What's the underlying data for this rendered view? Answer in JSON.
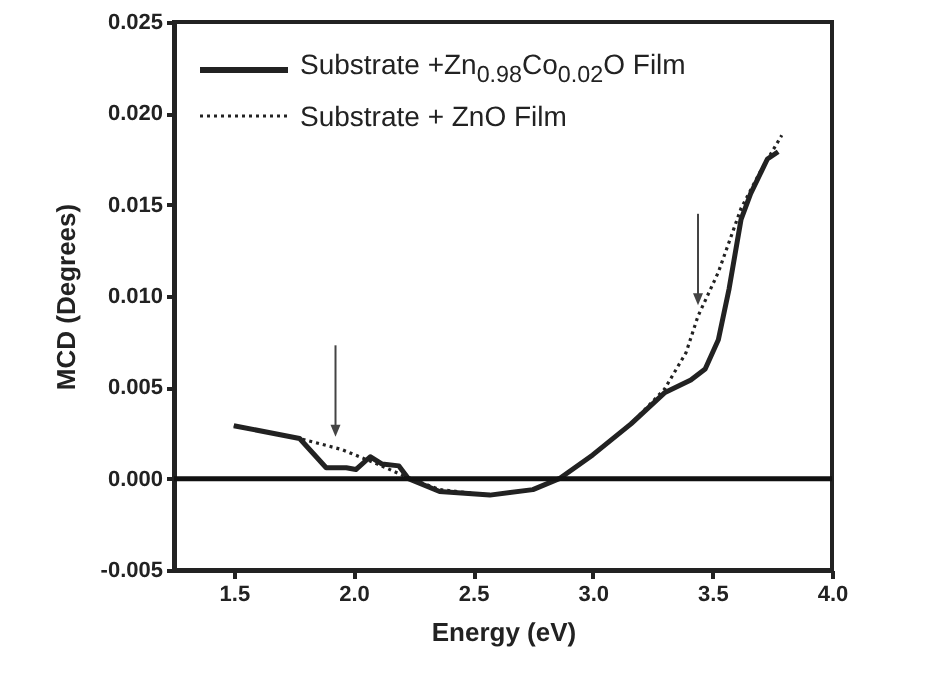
{
  "chart_data": {
    "type": "line",
    "xlabel": "Energy (eV)",
    "ylabel": "MCD (Degrees)",
    "xlim": [
      1.25,
      4.0
    ],
    "ylim": [
      -0.005,
      0.025
    ],
    "xticks": [
      1.5,
      {
        "value": 2,
        "label": "2.0"
      },
      2.5,
      {
        "value": 3,
        "label": "3.0"
      },
      3.5,
      {
        "value": 4,
        "label": "4.0"
      }
    ],
    "yticks": [
      -0.005,
      {
        "value": 0,
        "label": "0.000"
      },
      {
        "value": 0.005,
        "label": "0.005"
      },
      {
        "value": 0.01,
        "label": "0.010"
      },
      {
        "value": 0.015,
        "label": "0.015"
      },
      {
        "value": 0.02,
        "label": "0.020"
      },
      {
        "value": 0.025,
        "label": "0.025"
      }
    ],
    "legend": "top left",
    "grid": false,
    "marker": "none",
    "ref_lines": [
      {
        "axis": "y",
        "value": 0,
        "color": "#111111"
      }
    ],
    "series": [
      {
        "name": "Substrate +Zn$_{0.98}$Co$_{0.02}$O Film",
        "color": "#222222",
        "line_style": "solid",
        "x": [
          1.5,
          1.775,
          1.886,
          1.97,
          2.01,
          2.07,
          2.12,
          2.19,
          2.23,
          2.36,
          2.57,
          2.75,
          2.86,
          3.0,
          3.16,
          3.3,
          3.41,
          3.47,
          3.525,
          3.57,
          3.62,
          3.66,
          3.73,
          3.775
        ],
        "values": [
          0.0029,
          0.0022,
          0.0006,
          0.0006,
          0.0005,
          0.0012,
          0.0008,
          0.0007,
          0.0,
          -0.0007,
          -0.0009,
          -0.0006,
          0.0,
          0.0013,
          0.003,
          0.0047,
          0.0054,
          0.006,
          0.0076,
          0.0104,
          0.0142,
          0.0156,
          0.0175,
          0.0179
        ]
      },
      {
        "name": "Substrate + ZnO Film",
        "color": "#222222",
        "line_style": "dotted",
        "x": [
          1.5,
          1.775,
          1.95,
          2.1,
          2.22,
          2.36,
          2.57,
          2.75,
          2.86,
          3.0,
          3.16,
          3.3,
          3.39,
          3.44,
          3.525,
          3.62,
          3.7,
          3.79
        ],
        "values": [
          0.0029,
          0.0022,
          0.0016,
          0.0008,
          0.0001,
          -0.0006,
          -0.0009,
          -0.0006,
          0.0,
          0.0013,
          0.003,
          0.0049,
          0.0069,
          0.0089,
          0.0113,
          0.0148,
          0.0168,
          0.0188
        ]
      }
    ]
  }
}
